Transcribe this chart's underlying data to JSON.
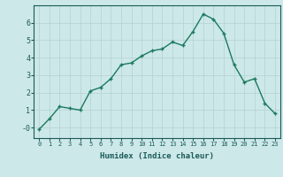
{
  "x": [
    0,
    1,
    2,
    3,
    4,
    5,
    6,
    7,
    8,
    9,
    10,
    11,
    12,
    13,
    14,
    15,
    16,
    17,
    18,
    19,
    20,
    21,
    22,
    23
  ],
  "y": [
    -0.1,
    0.5,
    1.2,
    1.1,
    1.0,
    2.1,
    2.3,
    2.8,
    3.6,
    3.7,
    4.1,
    4.4,
    4.5,
    4.9,
    4.7,
    5.5,
    6.5,
    6.2,
    5.4,
    3.6,
    2.6,
    2.8,
    1.4,
    0.8
  ],
  "line_color": "#1a7a5e",
  "marker": "+",
  "marker_size": 3,
  "xlabel": "Humidex (Indice chaleur)",
  "xlim": [
    -0.5,
    23.5
  ],
  "ylim": [
    -0.6,
    7.0
  ],
  "yticks": [
    0,
    1,
    2,
    3,
    4,
    5,
    6
  ],
  "ytick_labels": [
    "-0",
    "1",
    "2",
    "3",
    "4",
    "5",
    "6"
  ],
  "xticks": [
    0,
    1,
    2,
    3,
    4,
    5,
    6,
    7,
    8,
    9,
    10,
    11,
    12,
    13,
    14,
    15,
    16,
    17,
    18,
    19,
    20,
    21,
    22,
    23
  ],
  "bg_color": "#cde8e8",
  "grid_color": "#b8d4d4",
  "text_color": "#1a5a5a",
  "line_width": 1.0
}
